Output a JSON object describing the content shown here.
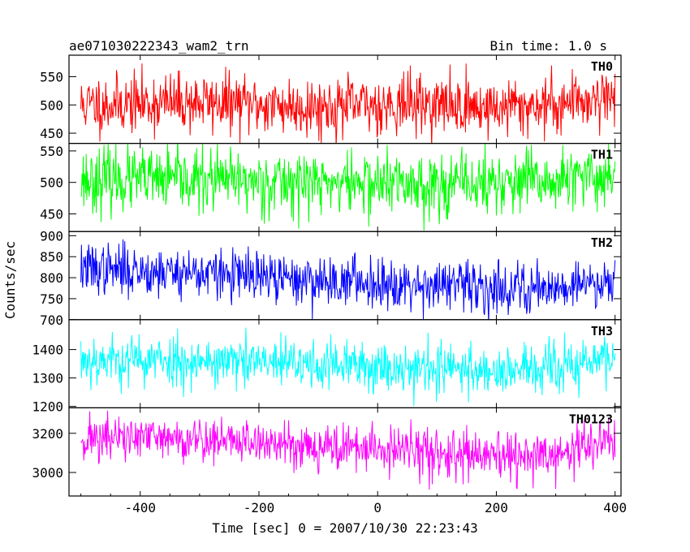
{
  "chart_data": {
    "type": "line",
    "title": "ae071030222343_wam2_trn",
    "subtitle": "Bin time: 1.0 s",
    "xlabel": "Time [sec] 0 = 2007/10/30 22:23:43",
    "ylabel": "Counts/sec",
    "xlim": [
      -520,
      410
    ],
    "x_ticks": [
      "-400",
      "-200",
      "0",
      "200",
      "400"
    ],
    "x_tick_values": [
      -400,
      -200,
      0,
      200,
      400
    ],
    "x_data_range": [
      -500,
      400
    ],
    "x_step": 1,
    "panels": [
      {
        "name": "TH0",
        "color": "#ff0000",
        "ylim": [
          432,
          588
        ],
        "y_ticks": [
          "450",
          "500",
          "550"
        ],
        "y_tick_values": [
          450,
          500,
          550
        ],
        "mean_x": [
          -500,
          -300,
          -100,
          0,
          50,
          200,
          300,
          400
        ],
        "mean_y": [
          500,
          505,
          496,
          500,
          503,
          495,
          502,
          518
        ],
        "noise_sd": 26,
        "seed": 11
      },
      {
        "name": "TH1",
        "color": "#00ff00",
        "ylim": [
          422,
          562
        ],
        "y_ticks": [
          "450",
          "500",
          "550"
        ],
        "y_tick_values": [
          450,
          500,
          550
        ],
        "mean_x": [
          -500,
          -300,
          -100,
          100,
          300,
          400
        ],
        "mean_y": [
          505,
          503,
          500,
          497,
          500,
          512
        ],
        "noise_sd": 25,
        "seed": 23
      },
      {
        "name": "TH2",
        "color": "#0000ff",
        "ylim": [
          700,
          910
        ],
        "y_ticks": [
          "700",
          "750",
          "800",
          "850",
          "900"
        ],
        "y_tick_values": [
          700,
          750,
          800,
          850,
          900
        ],
        "mean_x": [
          -500,
          -300,
          -150,
          0,
          200,
          300,
          400
        ],
        "mean_y": [
          822,
          812,
          795,
          790,
          775,
          778,
          795
        ],
        "noise_sd": 30,
        "seed": 37
      },
      {
        "name": "TH3",
        "color": "#00ffff",
        "ylim": [
          1195,
          1505
        ],
        "y_ticks": [
          "1200",
          "1300",
          "1400"
        ],
        "y_tick_values": [
          1200,
          1300,
          1400
        ],
        "mean_x": [
          -500,
          -300,
          -100,
          100,
          200,
          300,
          400
        ],
        "mean_y": [
          1365,
          1360,
          1345,
          1335,
          1325,
          1330,
          1375
        ],
        "noise_sd": 45,
        "seed": 53
      },
      {
        "name": "TH0123",
        "color": "#ff00ff",
        "ylim": [
          2880,
          3330
        ],
        "y_ticks": [
          "3000",
          "3200"
        ],
        "y_tick_values": [
          3000,
          3200
        ],
        "mean_x": [
          -500,
          -300,
          -100,
          100,
          200,
          300,
          400
        ],
        "mean_y": [
          3175,
          3170,
          3135,
          3100,
          3070,
          3085,
          3175
        ],
        "noise_sd": 60,
        "seed": 71
      }
    ]
  }
}
